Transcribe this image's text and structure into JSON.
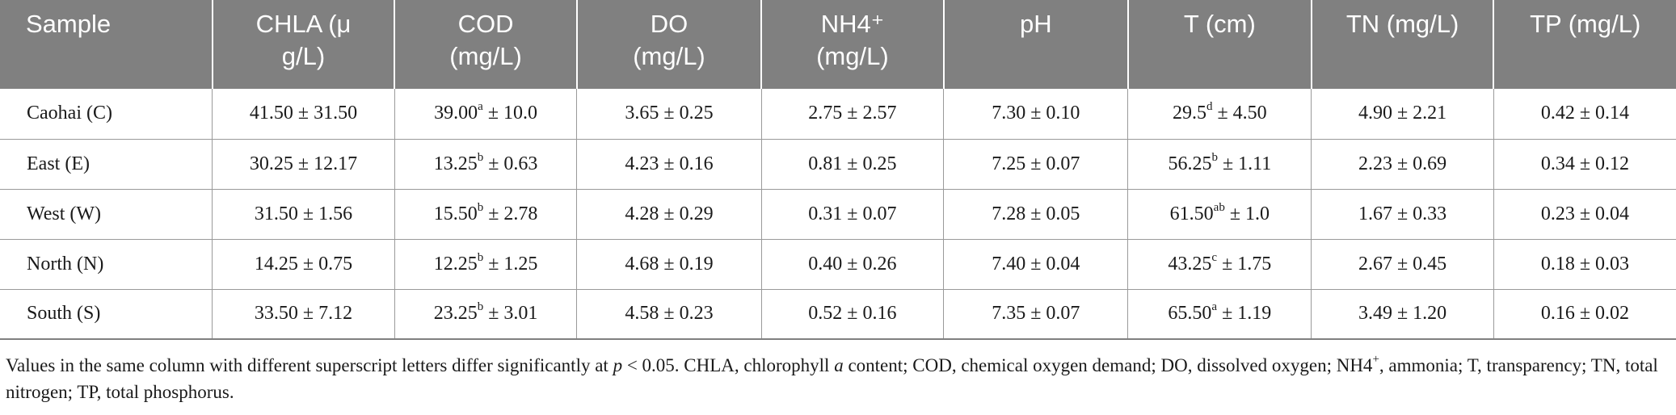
{
  "headers": [
    {
      "line1": "Sample",
      "line2": ""
    },
    {
      "line1": "CHLA (μ",
      "line2": "g/L)"
    },
    {
      "line1": "COD",
      "line2": "(mg/L)"
    },
    {
      "line1": "DO",
      "line2": "(mg/L)"
    },
    {
      "line1": "NH4⁺",
      "line2": "(mg/L)"
    },
    {
      "line1": "pH",
      "line2": ""
    },
    {
      "line1": "T (cm)",
      "line2": ""
    },
    {
      "line1": "TN (mg/L)",
      "line2": ""
    },
    {
      "line1": "TP (mg/L)",
      "line2": ""
    }
  ],
  "rows": [
    {
      "sample": "Caohai (C)",
      "chla": "41.50 ± 31.50",
      "cod": {
        "mean": "39.00",
        "sup": "a",
        "sd": " ± 10.0"
      },
      "do": "3.65 ± 0.25",
      "nh4": "2.75 ± 2.57",
      "ph": "7.30 ± 0.10",
      "t": {
        "mean": "29.5",
        "sup": "d",
        "sd": " ± 4.50"
      },
      "tn": "4.90 ± 2.21",
      "tp": "0.42 ± 0.14"
    },
    {
      "sample": "East (E)",
      "chla": "30.25 ± 12.17",
      "cod": {
        "mean": "13.25",
        "sup": "b",
        "sd": " ± 0.63"
      },
      "do": "4.23 ± 0.16",
      "nh4": "0.81 ± 0.25",
      "ph": "7.25 ± 0.07",
      "t": {
        "mean": "56.25",
        "sup": "b",
        "sd": " ± 1.11"
      },
      "tn": "2.23 ± 0.69",
      "tp": "0.34 ± 0.12"
    },
    {
      "sample": "West (W)",
      "chla": "31.50 ± 1.56",
      "cod": {
        "mean": "15.50",
        "sup": "b",
        "sd": " ± 2.78"
      },
      "do": "4.28 ± 0.29",
      "nh4": "0.31 ± 0.07",
      "ph": "7.28 ± 0.05",
      "t": {
        "mean": "61.50",
        "sup": "ab",
        "sd": " ± 1.0"
      },
      "tn": "1.67 ± 0.33",
      "tp": "0.23 ± 0.04"
    },
    {
      "sample": "North (N)",
      "chla": "14.25 ± 0.75",
      "cod": {
        "mean": "12.25",
        "sup": "b",
        "sd": " ± 1.25"
      },
      "do": "4.68 ± 0.19",
      "nh4": "0.40 ± 0.26",
      "ph": "7.40 ± 0.04",
      "t": {
        "mean": "43.25",
        "sup": "c",
        "sd": " ± 1.75"
      },
      "tn": "2.67 ± 0.45",
      "tp": "0.18 ± 0.03"
    },
    {
      "sample": "South (S)",
      "chla": "33.50 ± 7.12",
      "cod": {
        "mean": "23.25",
        "sup": "b",
        "sd": " ± 3.01"
      },
      "do": "4.58 ± 0.23",
      "nh4": "0.52 ± 0.16",
      "ph": "7.35 ± 0.07",
      "t": {
        "mean": "65.50",
        "sup": "a",
        "sd": " ± 1.19"
      },
      "tn": "3.49 ± 1.20",
      "tp": "0.16 ± 0.02"
    }
  ],
  "footnote": {
    "part1": "Values in the same column with different superscript letters differ significantly at ",
    "p": "p",
    "part2": " < 0.05. CHLA, chlorophyll ",
    "a": "a",
    "part3": " content; COD, chemical oxygen demand; DO, dissolved oxygen; NH4",
    "plus": "+",
    "part4": ", ammonia; T, transparency; TN, total nitrogen; TP, total phosphorus."
  }
}
